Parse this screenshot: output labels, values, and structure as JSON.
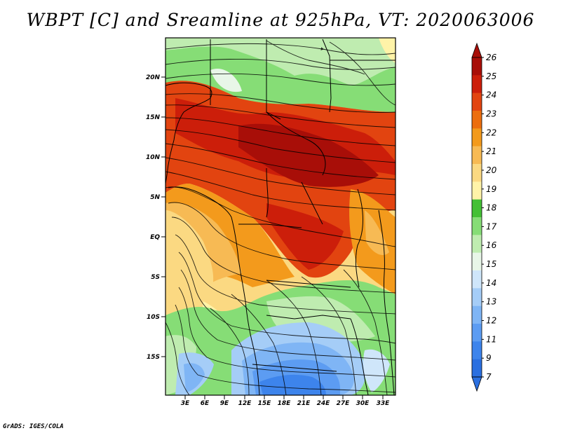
{
  "title": "WBPT [C] and Sreamline at 925hPa, VT: 2020063006",
  "credit": "GrADS: IGES/COLA",
  "map": {
    "lat_ticks": [
      "20N",
      "15N",
      "10N",
      "5N",
      "EQ",
      "5S",
      "10S",
      "15S"
    ],
    "lon_ticks": [
      "3E",
      "6E",
      "9E",
      "12E",
      "15E",
      "18E",
      "21E",
      "24E",
      "27E",
      "30E",
      "33E"
    ]
  },
  "colorbar": {
    "labels": [
      "7",
      "9",
      "11",
      "12",
      "13",
      "14",
      "15",
      "16",
      "17",
      "18",
      "19",
      "20",
      "21",
      "22",
      "23",
      "24",
      "25",
      "26"
    ],
    "colors": [
      "#2a6fe0",
      "#3d84ec",
      "#5c9cf2",
      "#7fb5f5",
      "#a5cdf7",
      "#cfe6fa",
      "#e8f6e8",
      "#bfecb0",
      "#86dd76",
      "#44c035",
      "#fff3a8",
      "#fbd982",
      "#f7ba54",
      "#f39a1c",
      "#ec6e0e",
      "#e24410",
      "#cc1e0a",
      "#a80e08"
    ]
  }
}
